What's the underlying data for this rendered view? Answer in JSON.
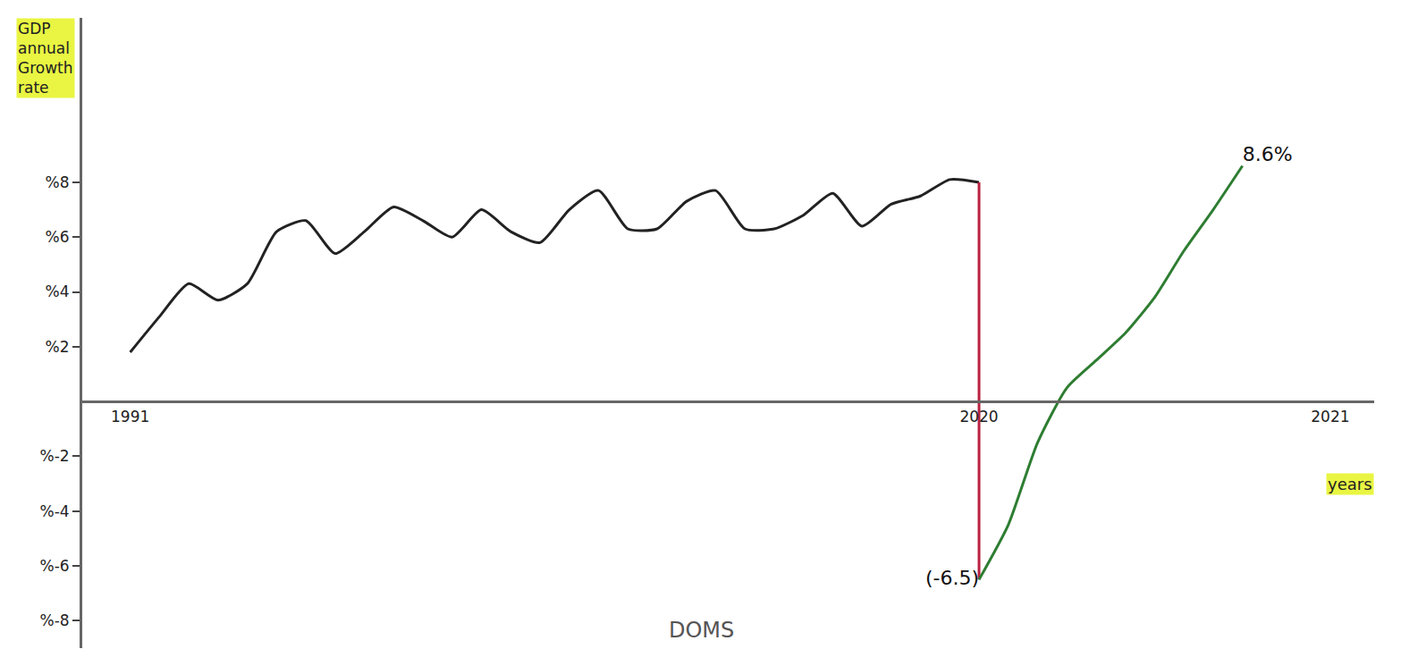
{
  "chart_data": {
    "type": "line",
    "y_label": "GDP annual Growth rate",
    "x_label": "years",
    "annotations": [
      "DOMS"
    ],
    "categories": [
      "1991",
      null,
      null,
      null,
      null,
      null,
      null,
      null,
      null,
      null,
      null,
      null,
      null,
      null,
      null,
      null,
      null,
      null,
      null,
      null,
      null,
      null,
      null,
      null,
      null,
      null,
      null,
      null,
      null,
      "2020",
      null,
      null,
      null,
      null,
      null,
      null,
      null,
      null,
      null,
      null,
      null,
      "2021"
    ],
    "series": [
      {
        "color": "#222222",
        "values": [
          1.8,
          3.1,
          4.3,
          3.7,
          4.3,
          6.2,
          6.6,
          5.4,
          6.2,
          7.1,
          6.6,
          6.0,
          7.0,
          6.2,
          5.8,
          7.0,
          7.7,
          6.3,
          6.3,
          7.3,
          7.7,
          6.3,
          6.3,
          6.8,
          7.6,
          6.4,
          7.2,
          7.5,
          8.1,
          8.0,
          null,
          null,
          null,
          null,
          null,
          null,
          null,
          null,
          null,
          null,
          null,
          null
        ]
      },
      {
        "color": "#b8213f",
        "x": [
          "2020",
          "2020"
        ],
        "values": [
          8.0,
          -6.5
        ]
      },
      {
        "color": "#2e7d32",
        "values": [
          null,
          null,
          null,
          null,
          null,
          null,
          null,
          null,
          null,
          null,
          null,
          null,
          null,
          null,
          null,
          null,
          null,
          null,
          null,
          null,
          null,
          null,
          null,
          null,
          null,
          null,
          null,
          null,
          null,
          -6.5,
          -4.5,
          -1.5,
          0.5,
          1.5,
          2.5,
          3.8,
          5.5,
          7.0,
          8.6,
          null,
          null,
          null
        ],
        "value_labels": [
          null,
          null,
          null,
          null,
          null,
          null,
          null,
          null,
          null,
          null,
          null,
          null,
          null,
          null,
          null,
          null,
          null,
          null,
          null,
          null,
          null,
          null,
          null,
          null,
          null,
          null,
          null,
          null,
          null,
          "(-6.5)",
          null,
          null,
          null,
          null,
          null,
          null,
          null,
          null,
          "8.6%",
          null,
          null,
          null
        ]
      }
    ],
    "ylim": [
      -9,
      14
    ],
    "yticks": [
      {
        "value": 8,
        "label": "%8"
      },
      {
        "value": 6,
        "label": "%6"
      },
      {
        "value": 4,
        "label": "%4"
      },
      {
        "value": 2,
        "label": "%2"
      },
      {
        "value": -2,
        "label": "%-2"
      },
      {
        "value": -4,
        "label": "%-4"
      },
      {
        "value": -6,
        "label": "%-6"
      },
      {
        "value": -8,
        "label": "%-8"
      }
    ],
    "grid": false
  }
}
